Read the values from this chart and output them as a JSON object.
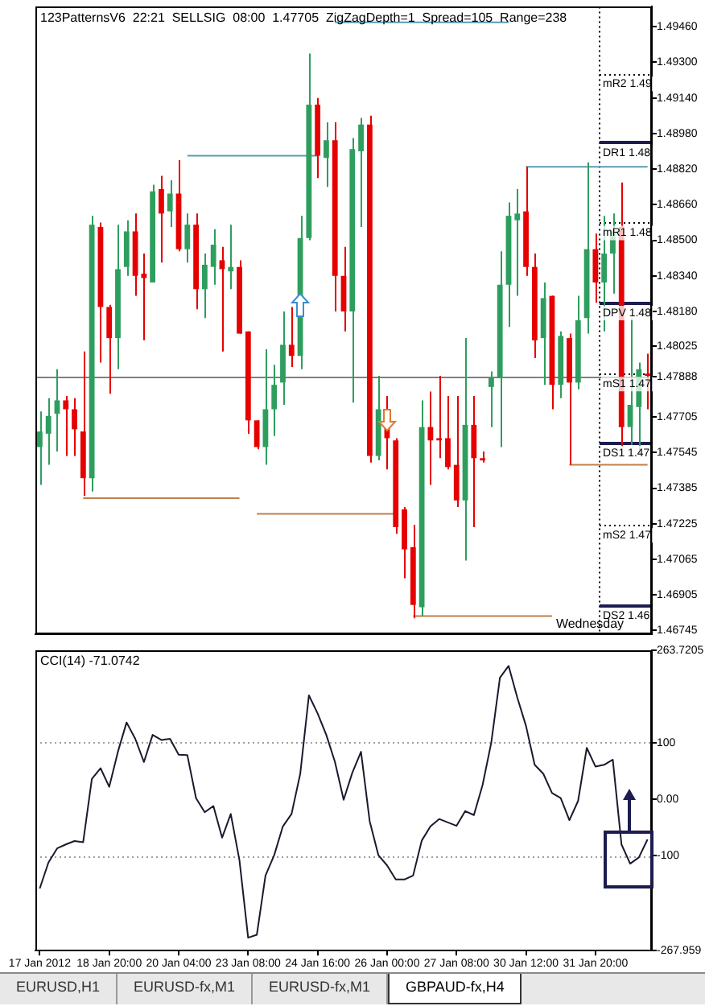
{
  "chart_data": [
    {
      "type": "candlestick",
      "title": "123PatternsV6  22:21  SELLSIG  08:00  1.47705  ZigZagDepth=1  Spread=105  Range=238",
      "annotations": [
        "Wednesday"
      ],
      "ohlc": [
        [
          1.4757,
          1.4773,
          1.474,
          1.4764
        ],
        [
          1.4763,
          1.4779,
          1.4749,
          1.4771
        ],
        [
          1.4772,
          1.4792,
          1.4755,
          1.4778
        ],
        [
          1.4778,
          1.478,
          1.4753,
          1.4774
        ],
        [
          1.4774,
          1.4779,
          1.4753,
          1.4765
        ],
        [
          1.4764,
          1.48,
          1.4735,
          1.4743
        ],
        [
          1.4743,
          1.4861,
          1.4737,
          1.4857
        ],
        [
          1.4856,
          1.4858,
          1.4795,
          1.482
        ],
        [
          1.482,
          1.4821,
          1.4781,
          1.4806
        ],
        [
          1.4806,
          1.4857,
          1.4792,
          1.4837
        ],
        [
          1.4838,
          1.4859,
          1.4834,
          1.4854
        ],
        [
          1.4854,
          1.4862,
          1.4825,
          1.4834
        ],
        [
          1.4835,
          1.4844,
          1.4805,
          1.4833
        ],
        [
          1.4831,
          1.4875,
          1.4831,
          1.4872
        ],
        [
          1.4873,
          1.4879,
          1.484,
          1.4862
        ],
        [
          1.4863,
          1.4877,
          1.4856,
          1.4871
        ],
        [
          1.4871,
          1.4886,
          1.4845,
          1.4846
        ],
        [
          1.4846,
          1.4862,
          1.484,
          1.4857
        ],
        [
          1.4857,
          1.4862,
          1.4819,
          1.4828
        ],
        [
          1.4828,
          1.4844,
          1.4815,
          1.4839
        ],
        [
          1.4838,
          1.4855,
          1.483,
          1.4848
        ],
        [
          1.4841,
          1.4847,
          1.48,
          1.4837
        ],
        [
          1.4836,
          1.4857,
          1.4828,
          1.4838
        ],
        [
          1.4838,
          1.4841,
          1.4808,
          1.4808
        ],
        [
          1.4809,
          1.4809,
          1.4763,
          1.4769
        ],
        [
          1.4769,
          1.4769,
          1.4756,
          1.4757
        ],
        [
          1.4757,
          1.4801,
          1.4749,
          1.4774
        ],
        [
          1.4774,
          1.4794,
          1.4762,
          1.4785
        ],
        [
          1.4786,
          1.4818,
          1.4776,
          1.4803
        ],
        [
          1.4803,
          1.482,
          1.4793,
          1.4798
        ],
        [
          1.4798,
          1.4861,
          1.4792,
          1.4851
        ],
        [
          1.4851,
          1.4934,
          1.485,
          1.4911
        ],
        [
          1.4911,
          1.4914,
          1.4878,
          1.4888
        ],
        [
          1.4887,
          1.4903,
          1.4874,
          1.4895
        ],
        [
          1.4895,
          1.4903,
          1.4818,
          1.4834
        ],
        [
          1.4834,
          1.4847,
          1.4809,
          1.4818
        ],
        [
          1.4818,
          1.4896,
          1.4777,
          1.4891
        ],
        [
          1.489,
          1.4905,
          1.4856,
          1.4902
        ],
        [
          1.4902,
          1.4906,
          1.475,
          1.4753
        ],
        [
          1.4753,
          1.4789,
          1.4751,
          1.4774
        ],
        [
          1.4774,
          1.478,
          1.4747,
          1.4761
        ],
        [
          1.476,
          1.4761,
          1.4718,
          1.4721
        ],
        [
          1.4729,
          1.473,
          1.4698,
          1.4711
        ],
        [
          1.4712,
          1.4722,
          1.468,
          1.4686
        ],
        [
          1.4685,
          1.4778,
          1.4681,
          1.4766
        ],
        [
          1.4766,
          1.4782,
          1.474,
          1.476
        ],
        [
          1.4761,
          1.4789,
          1.4752,
          1.476
        ],
        [
          1.4761,
          1.478,
          1.4747,
          1.4748
        ],
        [
          1.4749,
          1.478,
          1.473,
          1.4733
        ],
        [
          1.4733,
          1.4806,
          1.4706,
          1.4767
        ],
        [
          1.4767,
          1.478,
          1.4721,
          1.4752
        ],
        [
          1.4752,
          1.4755,
          1.475,
          1.4751
        ],
        [
          1.4784,
          1.4791,
          1.4766,
          1.4788
        ],
        [
          1.4788,
          1.4845,
          1.4757,
          1.483
        ],
        [
          1.483,
          1.4867,
          1.4811,
          1.4861
        ],
        [
          1.4859,
          1.4873,
          1.4825,
          1.4862
        ],
        [
          1.4863,
          1.4883,
          1.4834,
          1.4838
        ],
        [
          1.4838,
          1.4844,
          1.4797,
          1.4805
        ],
        [
          1.4806,
          1.4831,
          1.4785,
          1.4824
        ],
        [
          1.4825,
          1.4825,
          1.4774,
          1.4785
        ],
        [
          1.4785,
          1.4809,
          1.4779,
          1.4807
        ],
        [
          1.4806,
          1.4808,
          1.4749,
          1.4786
        ],
        [
          1.4786,
          1.4825,
          1.4783,
          1.4814
        ],
        [
          1.4815,
          1.4885,
          1.4808,
          1.4846
        ],
        [
          1.4846,
          1.4853,
          1.4822,
          1.4831
        ],
        [
          1.4831,
          1.4861,
          1.4809,
          1.4844
        ],
        [
          1.4844,
          1.4862,
          1.4826,
          1.4854
        ],
        [
          1.4856,
          1.4876,
          1.4757,
          1.4766
        ],
        [
          1.4766,
          1.4815,
          1.4758,
          1.4776
        ],
        [
          1.4775,
          1.4795,
          1.4754,
          1.4792
        ],
        [
          1.479,
          1.4799,
          1.4774,
          1.4789
        ]
      ],
      "colors": [
        "#2e9e5e",
        "#2e9e5e",
        "#2e9e5e",
        "#e60000",
        "#e60000",
        "#e60000",
        "#2e9e5e",
        "#e60000",
        "#e60000",
        "#2e9e5e",
        "#2e9e5e",
        "#e60000",
        "#e60000",
        "#2e9e5e",
        "#e60000",
        "#2e9e5e",
        "#e60000",
        "#2e9e5e",
        "#e60000",
        "#2e9e5e",
        "#2e9e5e",
        "#e60000",
        "#2e9e5e",
        "#e60000",
        "#e60000",
        "#e60000",
        "#2e9e5e",
        "#2e9e5e",
        "#2e9e5e",
        "#e60000",
        "#2e9e5e",
        "#2e9e5e",
        "#e60000",
        "#2e9e5e",
        "#e60000",
        "#e60000",
        "#2e9e5e",
        "#2e9e5e",
        "#e60000",
        "#2e9e5e",
        "#e60000",
        "#e60000",
        "#e60000",
        "#e60000",
        "#2e9e5e",
        "#e60000",
        "#e60000",
        "#e60000",
        "#e60000",
        "#2e9e5e",
        "#e60000",
        "#e60000",
        "#2e9e5e",
        "#2e9e5e",
        "#2e9e5e",
        "#2e9e5e",
        "#e60000",
        "#e60000",
        "#2e9e5e",
        "#e60000",
        "#2e9e5e",
        "#e60000",
        "#2e9e5e",
        "#2e9e5e",
        "#e60000",
        "#2e9e5e",
        "#2e9e5e",
        "#e60000",
        "#2e9e5e",
        "#2e9e5e",
        "#e60000"
      ],
      "series": [
        {
          "type": "line",
          "color": "#5b9bb0",
          "values": [
            null,
            null,
            null,
            null,
            null,
            null,
            null,
            null,
            null,
            null,
            null,
            null,
            null,
            null,
            null,
            null,
            null,
            1.4888,
            1.4888,
            1.4888,
            1.4888,
            1.4888,
            1.4888,
            1.4888,
            1.4888,
            1.4888,
            1.4888,
            1.4888,
            1.4888,
            1.4888,
            1.4888,
            1.4888,
            1.4888,
            null,
            null,
            null,
            null,
            null,
            null,
            null,
            null,
            null,
            null,
            null,
            null,
            null,
            null,
            null,
            null,
            null,
            null,
            null,
            null,
            null,
            null,
            null,
            null,
            null,
            null,
            null,
            null,
            null,
            null,
            null,
            null,
            null,
            null,
            null,
            null,
            null,
            null
          ]
        },
        {
          "type": "line",
          "color": "#5b9bb0",
          "values": [
            null,
            null,
            null,
            null,
            null,
            null,
            null,
            null,
            null,
            null,
            null,
            null,
            null,
            null,
            null,
            null,
            null,
            null,
            null,
            null,
            null,
            null,
            null,
            null,
            null,
            null,
            null,
            null,
            null,
            null,
            null,
            null,
            null,
            null,
            1.4948,
            1.4948,
            1.4948,
            1.4948,
            1.4948,
            1.4948,
            1.4948,
            1.4948,
            1.4948,
            1.4948,
            1.4948,
            1.4948,
            1.4948,
            1.4948,
            1.4948,
            1.4948,
            1.4948,
            1.4948,
            1.4948,
            1.4948,
            1.4948,
            null,
            null,
            null,
            null,
            null,
            null,
            null,
            null,
            null,
            null,
            null,
            null,
            null,
            null,
            null,
            null
          ]
        },
        {
          "type": "line",
          "color": "#5b9bb0",
          "values": [
            null,
            null,
            null,
            null,
            null,
            null,
            null,
            null,
            null,
            null,
            null,
            null,
            null,
            null,
            null,
            null,
            null,
            null,
            null,
            null,
            null,
            null,
            null,
            null,
            null,
            null,
            null,
            null,
            null,
            null,
            null,
            null,
            null,
            null,
            null,
            null,
            null,
            null,
            null,
            null,
            null,
            null,
            null,
            null,
            null,
            null,
            null,
            null,
            null,
            null,
            null,
            null,
            null,
            null,
            null,
            null,
            1.4883,
            1.4883,
            1.4883,
            1.4883,
            1.4883,
            1.4883,
            1.4883,
            1.4883,
            1.4883,
            1.4883,
            1.4883,
            1.4883,
            1.4883,
            1.4883,
            1.4883
          ]
        },
        {
          "type": "line",
          "color": "#c0804a",
          "values": [
            null,
            null,
            null,
            null,
            null,
            1.4734,
            1.4734,
            1.4734,
            1.4734,
            1.4734,
            1.4734,
            1.4734,
            1.4734,
            1.4734,
            1.4734,
            1.4734,
            1.4734,
            1.4734,
            1.4734,
            1.4734,
            1.4734,
            1.4734,
            1.4734,
            1.4734,
            null,
            null,
            null,
            null,
            null,
            null,
            null,
            null,
            null,
            null,
            null,
            null,
            null,
            null,
            null,
            null,
            null,
            null,
            null,
            null,
            null,
            null,
            null,
            null,
            null,
            null,
            null,
            null,
            null,
            null,
            null,
            null,
            null,
            null,
            null,
            null,
            null,
            null,
            null,
            null,
            null,
            null,
            null,
            null,
            null,
            null,
            null
          ]
        },
        {
          "type": "line",
          "color": "#c0804a",
          "values": [
            null,
            null,
            null,
            null,
            null,
            null,
            null,
            null,
            null,
            null,
            null,
            null,
            null,
            null,
            null,
            null,
            null,
            null,
            null,
            null,
            null,
            null,
            null,
            null,
            null,
            1.4727,
            1.4727,
            1.4727,
            1.4727,
            1.4727,
            1.4727,
            1.4727,
            1.4727,
            1.4727,
            1.4727,
            1.4727,
            1.4727,
            1.4727,
            1.4727,
            1.4727,
            1.4727,
            1.4727,
            null,
            null,
            null,
            null,
            null,
            null,
            null,
            null,
            null,
            null,
            null,
            null,
            null,
            null,
            null,
            null,
            null,
            null,
            null,
            null,
            null,
            null,
            null,
            null,
            null,
            null,
            null,
            null,
            null
          ]
        },
        {
          "type": "line",
          "color": "#c0804a",
          "values": [
            null,
            null,
            null,
            null,
            null,
            null,
            null,
            null,
            null,
            null,
            null,
            null,
            null,
            null,
            null,
            null,
            null,
            null,
            null,
            null,
            null,
            null,
            null,
            null,
            null,
            null,
            null,
            null,
            null,
            null,
            null,
            null,
            null,
            null,
            null,
            null,
            null,
            null,
            null,
            null,
            null,
            null,
            null,
            1.4681,
            1.4681,
            1.4681,
            1.4681,
            1.4681,
            1.4681,
            1.4681,
            1.4681,
            1.4681,
            1.4681,
            1.4681,
            1.4681,
            1.4681,
            1.4681,
            1.4681,
            1.4681,
            1.4681,
            null,
            null,
            null,
            null,
            null,
            null,
            null,
            null,
            null,
            null,
            null
          ]
        },
        {
          "type": "line",
          "color": "#c0804a",
          "values": [
            null,
            null,
            null,
            null,
            null,
            null,
            null,
            null,
            null,
            null,
            null,
            null,
            null,
            null,
            null,
            null,
            null,
            null,
            null,
            null,
            null,
            null,
            null,
            null,
            null,
            null,
            null,
            null,
            null,
            null,
            null,
            null,
            null,
            null,
            null,
            null,
            null,
            null,
            null,
            null,
            null,
            null,
            null,
            null,
            null,
            null,
            null,
            null,
            null,
            null,
            null,
            null,
            null,
            null,
            null,
            null,
            null,
            null,
            null,
            null,
            null,
            1.4749,
            1.4749,
            1.4749,
            1.4749,
            1.4749,
            1.4749,
            1.4749,
            1.4749,
            1.4749,
            1.4749
          ]
        }
      ],
      "ylim": [
        1.4673,
        1.4955
      ],
      "yticks": [
        {
          "value": 1.4946,
          "label": "1.49460"
        },
        {
          "value": 1.493,
          "label": "1.49300"
        },
        {
          "value": 1.4914,
          "label": "1.49140"
        },
        {
          "value": 1.4898,
          "label": "1.48980"
        },
        {
          "value": 1.4882,
          "label": "1.48820"
        },
        {
          "value": 1.4866,
          "label": "1.48660"
        },
        {
          "value": 1.485,
          "label": "1.48500"
        },
        {
          "value": 1.4834,
          "label": "1.48340"
        },
        {
          "value": 1.4818,
          "label": "1.48180"
        },
        {
          "value": 1.48025,
          "label": "1.48025"
        },
        {
          "value": 1.47888,
          "label": "1.47888"
        },
        {
          "value": 1.47705,
          "label": "1.47705"
        },
        {
          "value": 1.47545,
          "label": "1.47545"
        },
        {
          "value": 1.47385,
          "label": "1.47385"
        },
        {
          "value": 1.47225,
          "label": "1.47225"
        },
        {
          "value": 1.47065,
          "label": "1.47065"
        },
        {
          "value": 1.46905,
          "label": "1.46905"
        },
        {
          "value": 1.46745,
          "label": "1.46745"
        }
      ],
      "ref_lines": [
        {
          "axis": "y",
          "value": 1.47888,
          "color": "#808080",
          "line_style": "solid"
        },
        {
          "axis": "y",
          "value": 1.4925,
          "label": "mR2 1.49",
          "line_style": "dotted",
          "color": "#000000"
        },
        {
          "axis": "y",
          "value": 1.4894,
          "label": "DR1 1.48",
          "line_style": "solid",
          "color": "#1c1c50"
        },
        {
          "axis": "y",
          "value": 1.4858,
          "label": "mR1 1.48",
          "line_style": "dotted",
          "color": "#000000"
        },
        {
          "axis": "y",
          "value": 1.4822,
          "label": "DPV 1.48",
          "line_style": "solid",
          "color": "#1c1c50"
        },
        {
          "axis": "y",
          "value": 1.479,
          "label": "mS1 1.47",
          "line_style": "dotted",
          "color": "#000000"
        },
        {
          "axis": "y",
          "value": 1.4759,
          "label": "DS1 1.47",
          "line_style": "solid",
          "color": "#1c1c50"
        },
        {
          "axis": "y",
          "value": 1.4722,
          "label": "mS2 1.47",
          "line_style": "dotted",
          "color": "#000000"
        },
        {
          "axis": "y",
          "value": 1.4686,
          "label": "DS2 1.46",
          "line_style": "solid",
          "color": "#1c1c50"
        }
      ],
      "tick_labels": "y"
    },
    {
      "type": "line",
      "title": "CCI(14) -71.0742",
      "categories": [
        "17 Jan 2012",
        null,
        null,
        null,
        null,
        null,
        null,
        null,
        "18 Jan 20:00",
        null,
        null,
        null,
        null,
        null,
        null,
        null,
        "20 Jan 04:00",
        null,
        null,
        null,
        null,
        null,
        null,
        null,
        "23 Jan 08:00",
        null,
        null,
        null,
        null,
        null,
        null,
        null,
        "24 Jan 16:00",
        null,
        null,
        null,
        null,
        null,
        null,
        null,
        "26 Jan 00:00",
        null,
        null,
        null,
        null,
        null,
        null,
        null,
        "27 Jan 08:00",
        null,
        null,
        null,
        null,
        null,
        null,
        null,
        "30 Jan 12:00",
        null,
        null,
        null,
        null,
        null,
        null,
        null,
        "31 Jan 20:00",
        null,
        null,
        null,
        null,
        null,
        null
      ],
      "series": [
        {
          "color": "#1a1a2e",
          "values": [
            -158,
            -112,
            -87,
            -80,
            -74,
            -76,
            36,
            55,
            22,
            84,
            136,
            107,
            66,
            114,
            105,
            107,
            79,
            78,
            2,
            -23,
            -12,
            -68,
            -26,
            -108,
            -245,
            -240,
            -135,
            -99,
            -48,
            -26,
            45,
            184,
            152,
            114,
            66,
            -1,
            47,
            84,
            -39,
            -99,
            -117,
            -142,
            -142,
            -135,
            -73,
            -48,
            -35,
            -41,
            -47,
            -21,
            -28,
            25,
            100,
            215,
            236,
            180,
            130,
            61,
            45,
            11,
            2,
            -37,
            -3,
            91,
            58,
            61,
            70,
            -80,
            -114,
            -103,
            -71
          ]
        }
      ],
      "ylim": [
        -267.959,
        263.7205
      ],
      "yticks": [
        263.7205,
        100,
        {
          "value": 0,
          "label": "0.00"
        },
        -100,
        -267.959
      ],
      "ref_lines": [
        {
          "axis": "y",
          "value": 100,
          "line_style": "dotted",
          "color": "#a0a0a0"
        },
        {
          "axis": "y",
          "value": -100,
          "line_style": "dotted",
          "color": "#a0a0a0"
        }
      ],
      "annotations": [
        "EURUSD,H1",
        "EURUSD-fx,M1",
        "EURUSD-fx,M1",
        "GBPAUD-fx,H4"
      ]
    }
  ]
}
